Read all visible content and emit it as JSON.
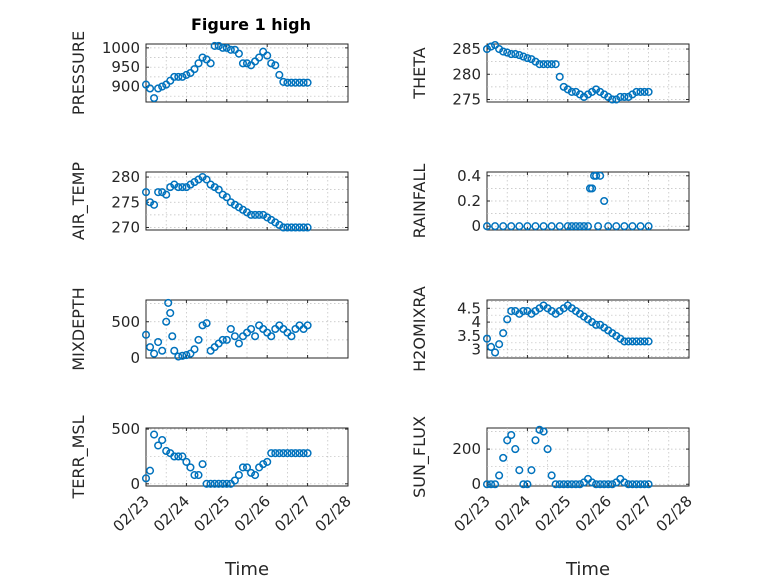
{
  "figure_title": "Figure 1 high",
  "x_axis_title": "Time",
  "x_ticks": [
    "02/23",
    "02/24",
    "02/25",
    "02/26",
    "02/27",
    "02/28"
  ],
  "colors": {
    "marker": "#0072BD",
    "axes": "#262626",
    "grid": "#bdbdbd"
  },
  "chart_data": [
    {
      "type": "scatter",
      "ylabel": "PRESSURE",
      "ylim": [
        860,
        1010
      ],
      "yticks": [
        900,
        950,
        1000
      ],
      "xlim": [
        0,
        5
      ],
      "grid": true,
      "x": [
        0,
        0.1,
        0.2,
        0.3,
        0.4,
        0.5,
        0.6,
        0.7,
        0.8,
        0.9,
        1.0,
        1.1,
        1.2,
        1.3,
        1.4,
        1.5,
        1.6,
        1.7,
        1.8,
        1.9,
        2.0,
        2.1,
        2.2,
        2.3,
        2.4,
        2.5,
        2.6,
        2.7,
        2.8,
        2.9,
        3.0,
        3.1,
        3.2,
        3.3,
        3.4,
        3.5,
        3.6,
        3.7,
        3.8,
        3.9,
        4.0
      ],
      "y": [
        905,
        895,
        870,
        895,
        900,
        905,
        915,
        925,
        925,
        925,
        930,
        935,
        945,
        960,
        975,
        970,
        960,
        1005,
        1005,
        1000,
        1000,
        995,
        995,
        985,
        960,
        960,
        955,
        965,
        975,
        990,
        980,
        960,
        955,
        930,
        912,
        910,
        910,
        910,
        910,
        910,
        910
      ]
    },
    {
      "type": "scatter",
      "ylabel": "THETA",
      "ylim": [
        274.5,
        286
      ],
      "yticks": [
        275,
        280,
        285
      ],
      "xlim": [
        0,
        5
      ],
      "grid": true,
      "x": [
        0,
        0.1,
        0.2,
        0.3,
        0.4,
        0.5,
        0.6,
        0.7,
        0.8,
        0.9,
        1.0,
        1.1,
        1.2,
        1.3,
        1.4,
        1.5,
        1.6,
        1.7,
        1.8,
        1.9,
        2.0,
        2.1,
        2.2,
        2.3,
        2.4,
        2.5,
        2.6,
        2.7,
        2.8,
        2.9,
        3.0,
        3.1,
        3.2,
        3.3,
        3.4,
        3.5,
        3.6,
        3.7,
        3.8,
        3.9,
        4.0
      ],
      "y": [
        285,
        285.5,
        285.8,
        285,
        284.5,
        284.3,
        284,
        284,
        283.8,
        283.5,
        283.2,
        283,
        282.5,
        282,
        282,
        282,
        282,
        282,
        279.5,
        277.5,
        277,
        276.5,
        276.5,
        276,
        275.5,
        276,
        276.5,
        277,
        276.5,
        276,
        275.5,
        275,
        275,
        275.5,
        275.5,
        275.5,
        276,
        276.5,
        276.5,
        276.5,
        276.5
      ]
    },
    {
      "type": "scatter",
      "ylabel": "AIR_TEMP",
      "ylim": [
        269.5,
        281
      ],
      "yticks": [
        270,
        275,
        280
      ],
      "xlim": [
        0,
        5
      ],
      "grid": true,
      "x": [
        0,
        0.1,
        0.2,
        0.3,
        0.4,
        0.5,
        0.6,
        0.7,
        0.8,
        0.9,
        1.0,
        1.1,
        1.2,
        1.3,
        1.4,
        1.5,
        1.6,
        1.7,
        1.8,
        1.9,
        2.0,
        2.1,
        2.2,
        2.3,
        2.4,
        2.5,
        2.6,
        2.7,
        2.8,
        2.9,
        3.0,
        3.1,
        3.2,
        3.3,
        3.4,
        3.5,
        3.6,
        3.7,
        3.8,
        3.9,
        4.0
      ],
      "y": [
        277,
        275,
        274.5,
        277,
        277,
        276.5,
        278,
        278.5,
        278,
        278,
        278,
        278.5,
        279,
        279.5,
        280,
        279.5,
        278.5,
        278,
        277.5,
        276.5,
        276,
        275,
        274.5,
        274,
        273.5,
        273,
        272.5,
        272.5,
        272.5,
        272.5,
        272,
        271.5,
        271,
        270.5,
        270,
        270,
        270,
        270,
        270,
        270,
        270
      ]
    },
    {
      "type": "scatter",
      "ylabel": "RAINFALL",
      "ylim": [
        -0.03,
        0.43
      ],
      "yticks": [
        0,
        0.2,
        0.4
      ],
      "xlim": [
        0,
        5
      ],
      "grid": true,
      "x": [
        0,
        0.2,
        0.4,
        0.6,
        0.8,
        1.0,
        1.2,
        1.4,
        1.6,
        1.8,
        2.0,
        2.1,
        2.2,
        2.3,
        2.4,
        2.5,
        2.55,
        2.6,
        2.65,
        2.7,
        2.75,
        2.8,
        2.9,
        3.0,
        3.2,
        3.4,
        3.6,
        3.8,
        4.0
      ],
      "y": [
        0,
        0,
        0,
        0,
        0,
        0,
        0,
        0,
        0,
        0,
        0,
        0,
        0,
        0,
        0,
        0,
        0.3,
        0.3,
        0.4,
        0.4,
        0,
        0.4,
        0.2,
        0,
        0,
        0,
        0,
        0,
        0
      ]
    },
    {
      "type": "scatter",
      "ylabel": "MIXDEPTH",
      "ylim": [
        0,
        800
      ],
      "yticks": [
        0,
        500
      ],
      "xlim": [
        0,
        5
      ],
      "grid": true,
      "x": [
        0,
        0.1,
        0.2,
        0.3,
        0.4,
        0.5,
        0.55,
        0.6,
        0.65,
        0.7,
        0.8,
        0.9,
        1.0,
        1.1,
        1.2,
        1.3,
        1.4,
        1.5,
        1.6,
        1.7,
        1.8,
        1.9,
        2.0,
        2.1,
        2.2,
        2.3,
        2.4,
        2.5,
        2.6,
        2.7,
        2.8,
        2.9,
        3.0,
        3.1,
        3.2,
        3.3,
        3.4,
        3.5,
        3.6,
        3.7,
        3.8,
        3.9,
        4.0
      ],
      "y": [
        320,
        150,
        60,
        220,
        100,
        500,
        760,
        620,
        300,
        100,
        20,
        30,
        40,
        60,
        120,
        250,
        450,
        480,
        100,
        150,
        200,
        250,
        250,
        400,
        300,
        200,
        300,
        350,
        400,
        300,
        450,
        400,
        350,
        300,
        400,
        450,
        400,
        350,
        300,
        400,
        450,
        400,
        450
      ]
    },
    {
      "type": "scatter",
      "ylabel": "H2OMIXRA",
      "ylim": [
        2.7,
        4.8
      ],
      "yticks": [
        3,
        3.5,
        4,
        4.5
      ],
      "xlim": [
        0,
        5
      ],
      "grid": true,
      "x": [
        0,
        0.1,
        0.2,
        0.3,
        0.4,
        0.5,
        0.6,
        0.7,
        0.8,
        0.9,
        1.0,
        1.1,
        1.2,
        1.3,
        1.4,
        1.5,
        1.6,
        1.7,
        1.8,
        1.9,
        2.0,
        2.1,
        2.2,
        2.3,
        2.4,
        2.5,
        2.6,
        2.7,
        2.8,
        2.9,
        3.0,
        3.1,
        3.2,
        3.3,
        3.4,
        3.5,
        3.6,
        3.7,
        3.8,
        3.9,
        4.0
      ],
      "y": [
        3.4,
        3.1,
        2.9,
        3.2,
        3.6,
        4.1,
        4.4,
        4.4,
        4.3,
        4.4,
        4.4,
        4.3,
        4.4,
        4.5,
        4.6,
        4.5,
        4.4,
        4.3,
        4.4,
        4.5,
        4.6,
        4.5,
        4.4,
        4.3,
        4.2,
        4.1,
        4.0,
        3.9,
        3.9,
        3.8,
        3.7,
        3.6,
        3.5,
        3.4,
        3.3,
        3.3,
        3.3,
        3.3,
        3.3,
        3.3,
        3.3
      ]
    },
    {
      "type": "scatter",
      "ylabel": "TERR_MSL",
      "ylim": [
        -20,
        510
      ],
      "yticks": [
        0,
        500
      ],
      "xlim": [
        0,
        5
      ],
      "grid": true,
      "x": [
        0,
        0.1,
        0.2,
        0.3,
        0.4,
        0.5,
        0.6,
        0.7,
        0.8,
        0.9,
        1.0,
        1.1,
        1.2,
        1.3,
        1.4,
        1.5,
        1.6,
        1.7,
        1.8,
        1.9,
        2.0,
        2.1,
        2.2,
        2.3,
        2.4,
        2.5,
        2.6,
        2.7,
        2.8,
        2.9,
        3.0,
        3.1,
        3.2,
        3.3,
        3.4,
        3.5,
        3.6,
        3.7,
        3.8,
        3.9,
        4.0
      ],
      "y": [
        50,
        120,
        450,
        350,
        400,
        300,
        280,
        250,
        250,
        250,
        200,
        150,
        80,
        80,
        180,
        0,
        0,
        0,
        0,
        0,
        0,
        0,
        30,
        80,
        150,
        150,
        100,
        80,
        150,
        180,
        200,
        280,
        280,
        280,
        280,
        280,
        280,
        280,
        280,
        280,
        280
      ]
    },
    {
      "type": "scatter",
      "ylabel": "SUN_FLUX",
      "ylim": [
        -10,
        320
      ],
      "yticks": [
        0,
        200
      ],
      "xlim": [
        0,
        5
      ],
      "grid": true,
      "x": [
        0,
        0.1,
        0.2,
        0.3,
        0.4,
        0.5,
        0.6,
        0.7,
        0.8,
        0.9,
        1.0,
        1.1,
        1.2,
        1.3,
        1.4,
        1.5,
        1.6,
        1.7,
        1.8,
        1.9,
        2.0,
        2.1,
        2.2,
        2.3,
        2.4,
        2.5,
        2.6,
        2.7,
        2.8,
        2.9,
        3.0,
        3.1,
        3.2,
        3.3,
        3.4,
        3.5,
        3.6,
        3.7,
        3.8,
        3.9,
        4.0
      ],
      "y": [
        0,
        0,
        0,
        50,
        150,
        250,
        280,
        200,
        80,
        0,
        0,
        80,
        250,
        310,
        300,
        200,
        50,
        0,
        0,
        0,
        0,
        0,
        0,
        0,
        10,
        30,
        10,
        0,
        0,
        0,
        0,
        0,
        10,
        30,
        10,
        0,
        0,
        0,
        0,
        0,
        0
      ]
    }
  ]
}
